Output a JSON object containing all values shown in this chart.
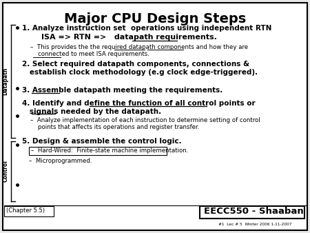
{
  "title": "Major CPU Design Steps",
  "bg_color": "#e8e8e8",
  "border_color": "#000000",
  "sidebar_datapath_label": "Datapath",
  "sidebar_control_label": "Control",
  "chapter": "(Chapter 5.5)",
  "course": "EECC550 - Shaaban",
  "footer": "#1  Lec # 5  Winter 2006 1-11-2007"
}
